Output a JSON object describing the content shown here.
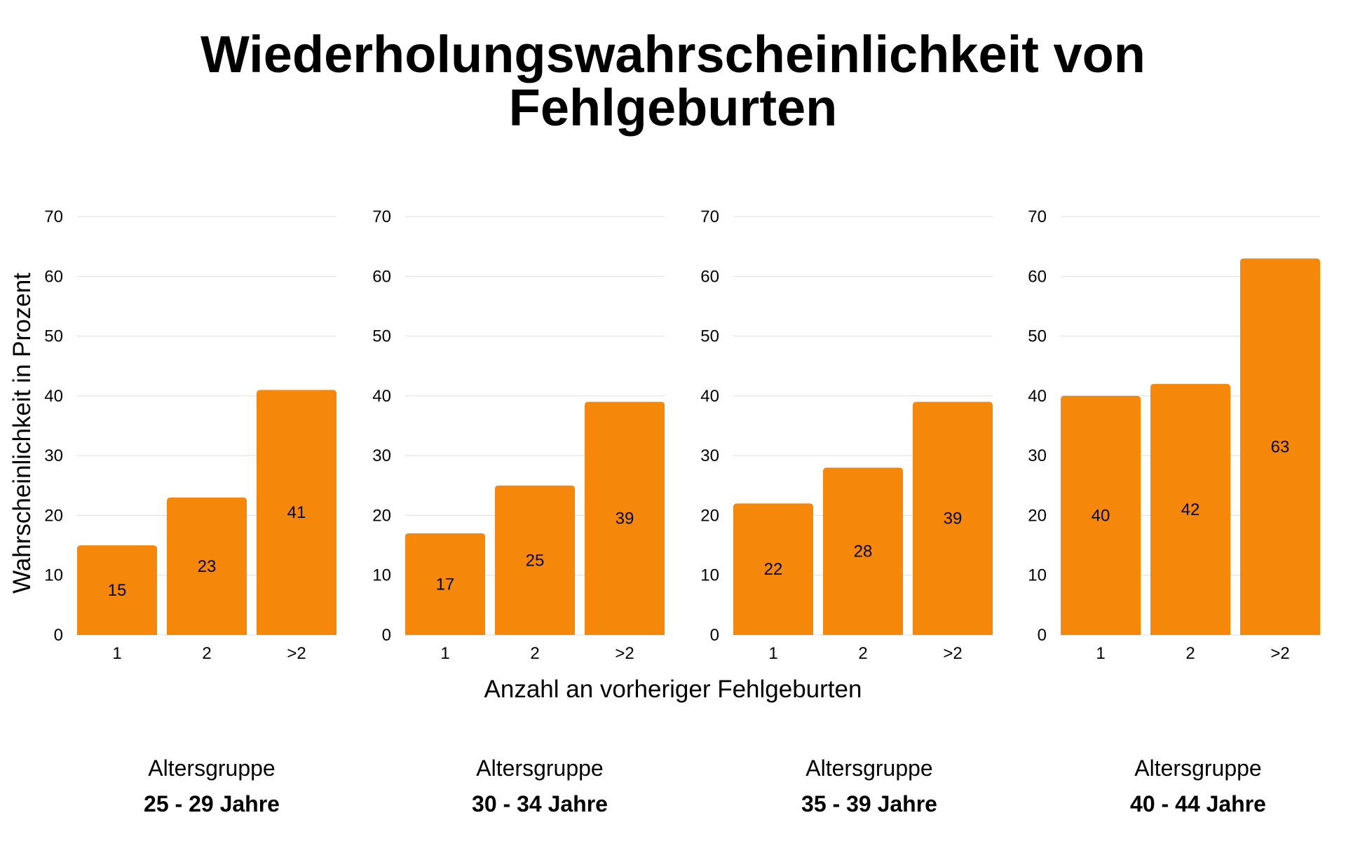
{
  "chart_data": {
    "type": "bar",
    "title_lines": [
      "Wiederholungswahrscheinlichkeit von",
      "Fehlgeburten"
    ],
    "ylabel": "Wahrscheinlichkeit in Prozent",
    "xlabel": "Anzahl an vorheriger Fehlgeburten",
    "ylim": [
      0,
      70
    ],
    "yticks": [
      "0",
      "10",
      "20",
      "30",
      "40",
      "50",
      "60",
      "70"
    ],
    "grid": true,
    "bar_color": "#F5880A",
    "categories": [
      "1",
      "2",
      ">2"
    ],
    "panels": [
      {
        "group_label": "Altersgruppe",
        "group_value": "25 - 29 Jahre",
        "values": [
          15,
          23,
          41
        ]
      },
      {
        "group_label": "Altersgruppe",
        "group_value": "30 - 34 Jahre",
        "values": [
          17,
          25,
          39
        ]
      },
      {
        "group_label": "Altersgruppe",
        "group_value": "35 - 39 Jahre",
        "values": [
          22,
          28,
          39
        ]
      },
      {
        "group_label": "Altersgruppe",
        "group_value": "40 - 44 Jahre",
        "values": [
          40,
          42,
          63
        ]
      }
    ]
  }
}
